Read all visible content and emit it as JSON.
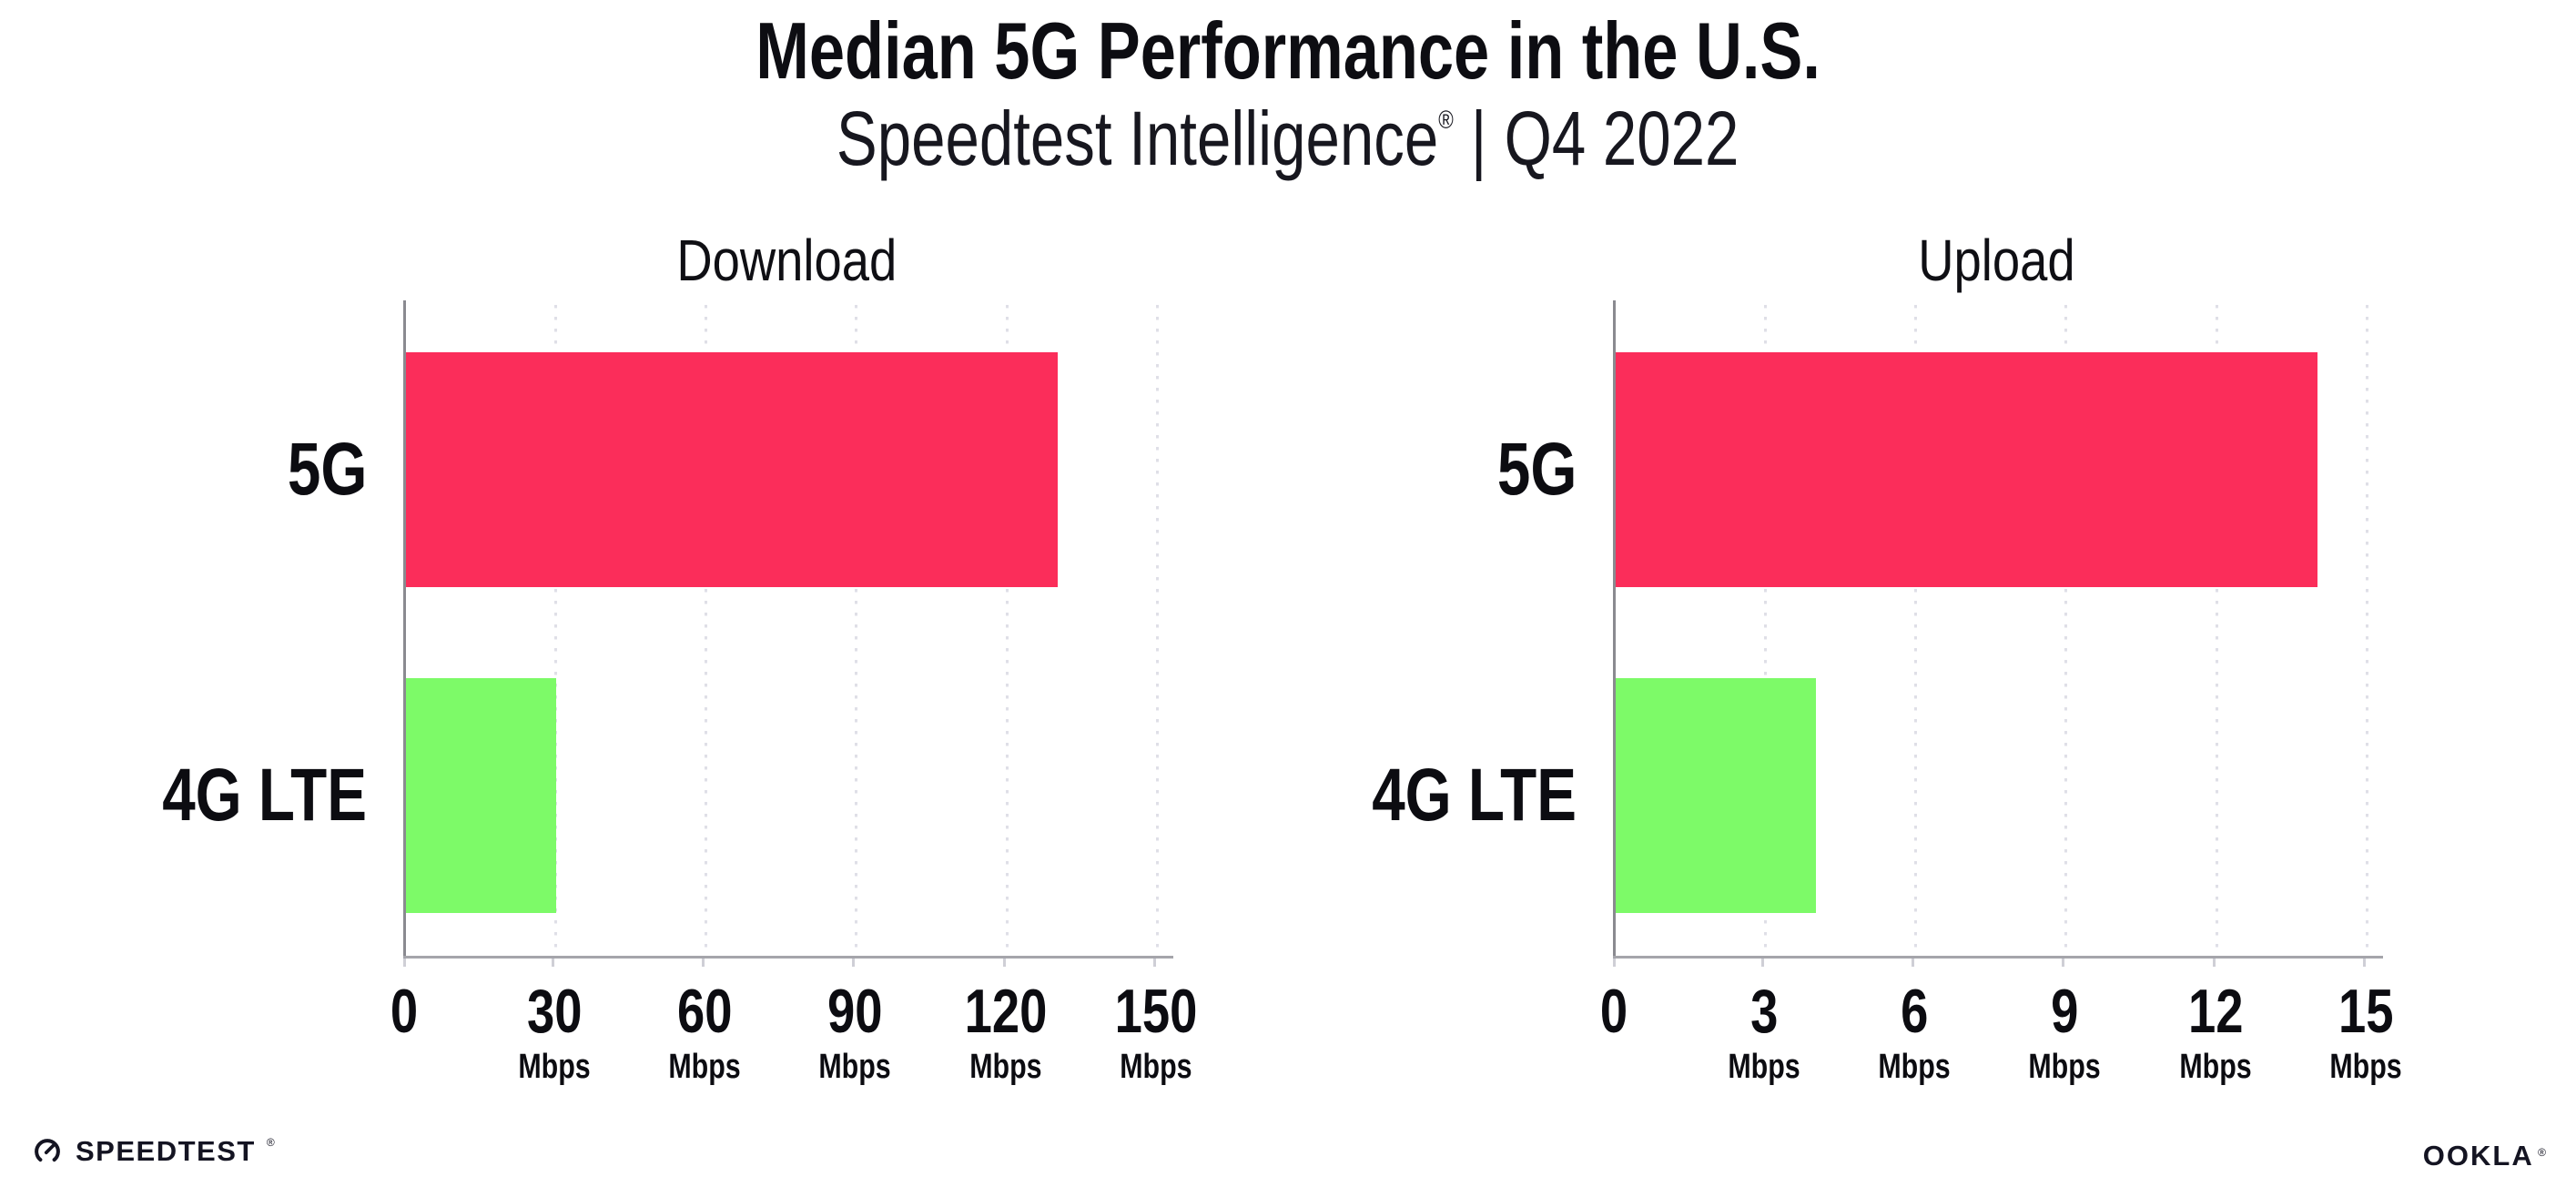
{
  "header": {
    "title": "Median 5G Performance in the U.S.",
    "subtitle_brand": "Speedtest Intelligence",
    "subtitle_registered": "®",
    "subtitle_separator": "|",
    "subtitle_period": "Q4 2022"
  },
  "chart_data": [
    {
      "type": "bar",
      "orientation": "horizontal",
      "title": "Download",
      "categories": [
        "5G",
        "4G LTE"
      ],
      "values": [
        130,
        30
      ],
      "unit": "Mbps",
      "xlim": [
        0,
        150
      ],
      "xticks": [
        0,
        30,
        60,
        90,
        120,
        150
      ],
      "xtick_labels": [
        "0",
        "30",
        "60",
        "90",
        "120",
        "150"
      ],
      "bar_colors": [
        "#FB2D5A",
        "#7DFA68"
      ],
      "grid": "dotted-vertical",
      "legend": "none"
    },
    {
      "type": "bar",
      "orientation": "horizontal",
      "title": "Upload",
      "categories": [
        "5G",
        "4G LTE"
      ],
      "values": [
        14,
        4
      ],
      "unit": "Mbps",
      "xlim": [
        0,
        15
      ],
      "xticks": [
        0,
        3,
        6,
        9,
        12,
        15
      ],
      "xtick_labels": [
        "0",
        "3",
        "6",
        "9",
        "12",
        "15"
      ],
      "bar_colors": [
        "#FB2D5A",
        "#7DFA68"
      ],
      "grid": "dotted-vertical",
      "legend": "none"
    }
  ],
  "footer": {
    "speedtest_text": "SPEEDTEST",
    "speedtest_mark": "®",
    "ookla_text": "OOKLA",
    "ookla_mark": "®"
  },
  "colors": {
    "bar_5g": "#FB2D5A",
    "bar_4g_lte": "#7DFA68",
    "text": "#101018",
    "axis_line": "#a5a5ab",
    "gridline": "#dfdfe7"
  }
}
